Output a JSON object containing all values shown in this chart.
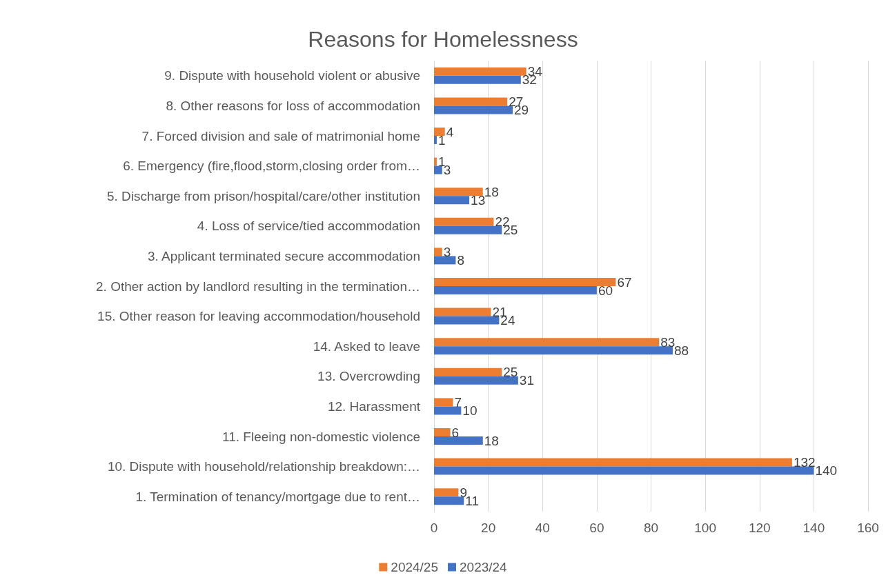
{
  "chart_data": {
    "type": "bar",
    "orientation": "horizontal",
    "title": "Reasons for Homelessness",
    "categories": [
      "9. Dispute with household violent or abusive",
      "8. Other reasons for loss of accommodation",
      "7. Forced division and sale of matrimonial home",
      "6. Emergency (fire,flood,storm,closing order from…",
      "5. Discharge from prison/hospital/care/other institution",
      "4. Loss of service/tied accommodation",
      "3. Applicant terminated secure accommodation",
      "2. Other action by landlord resulting in the termination…",
      "15. Other reason for leaving accommodation/household",
      "14. Asked to leave",
      "13. Overcrowding",
      "12. Harassment",
      "11. Fleeing non-domestic violence",
      "10. Dispute with household/relationship breakdown:…",
      "1. Termination of tenancy/mortgage due to rent…"
    ],
    "series": [
      {
        "name": "2024/25",
        "color": "#ed7d31",
        "values": [
          34,
          27,
          4,
          1,
          18,
          22,
          3,
          67,
          21,
          83,
          25,
          7,
          6,
          132,
          9
        ]
      },
      {
        "name": "2023/24",
        "color": "#4472c4",
        "values": [
          32,
          29,
          1,
          3,
          13,
          25,
          8,
          60,
          24,
          88,
          31,
          10,
          18,
          140,
          11
        ]
      }
    ],
    "xlim": [
      0,
      160
    ],
    "xticks": [
      0,
      20,
      40,
      60,
      80,
      100,
      120,
      140,
      160
    ],
    "grid": "x",
    "legend": "bottom",
    "data_labels": true
  }
}
